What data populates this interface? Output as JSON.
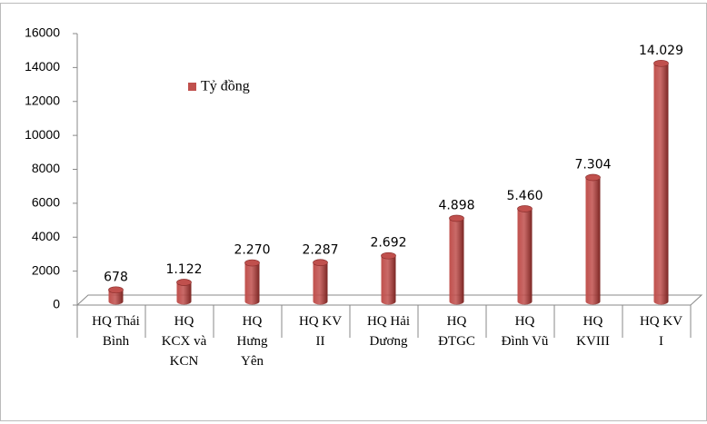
{
  "chart_data": {
    "type": "bar",
    "categories": [
      "HQ Thái\nBình",
      "HQ\nKCX và\nKCN",
      "HQ\nHưng\nYên",
      "HQ KV\nII",
      "HQ Hải\nDương",
      "HQ\nĐTGC",
      "HQ\nĐình Vũ",
      "HQ\nKVIII",
      "HQ KV\nI"
    ],
    "series": [
      {
        "name": "Tỷ đồng",
        "color": "#c0504d",
        "values": [
          678,
          1122,
          2270,
          2287,
          2692,
          4898,
          5460,
          7304,
          14029
        ],
        "value_labels": [
          "678",
          "1.122",
          "2.270",
          "2.287",
          "2.692",
          "4.898",
          "5.460",
          "7.304",
          "14.029"
        ]
      }
    ],
    "ylim": [
      0,
      16000
    ],
    "yticks": [
      0,
      2000,
      4000,
      6000,
      8000,
      10000,
      12000,
      14000,
      16000
    ],
    "grid": false,
    "legend": "upper left"
  }
}
